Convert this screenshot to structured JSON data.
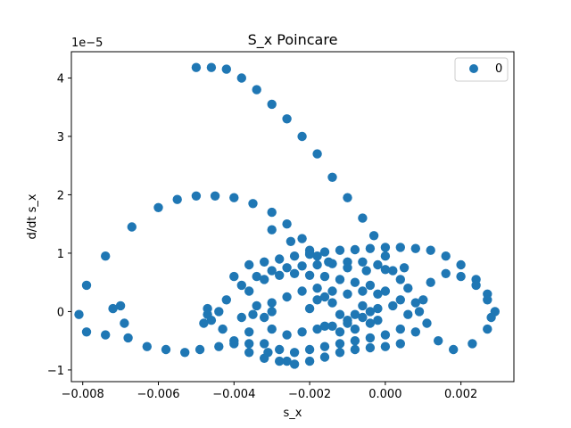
{
  "chart_data": {
    "type": "scatter",
    "title": "S_x Poincare",
    "xlabel": "s_x",
    "ylabel": "d/dt s_x",
    "y_offset_label": "1e−5",
    "xlim": [
      -0.0083,
      0.0034
    ],
    "ylim": [
      -1.2e-05,
      4.45e-05
    ],
    "grid": false,
    "legend_position": "top-right",
    "x_ticks": [
      -0.008,
      -0.006,
      -0.004,
      -0.002,
      0.0,
      0.002
    ],
    "x_tick_labels": [
      "−0.008",
      "−0.006",
      "−0.004",
      "−0.002",
      "0.000",
      "0.002"
    ],
    "y_ticks": [
      -1e-05,
      0,
      1e-05,
      2e-05,
      3e-05,
      4e-05
    ],
    "y_tick_labels": [
      "−1",
      "0",
      "1",
      "2",
      "3",
      "4"
    ],
    "series": [
      {
        "name": "0",
        "color": "#1f77b4",
        "x": [
          -0.005,
          -0.0046,
          -0.0042,
          -0.0038,
          -0.0034,
          -0.003,
          -0.0026,
          -0.0022,
          -0.0018,
          -0.0014,
          -0.001,
          -0.0006,
          -0.0003,
          0.0,
          0.0004,
          0.0008,
          -0.006,
          -0.0067,
          -0.0074,
          -0.0079,
          -0.0081,
          -0.0079,
          -0.0074,
          -0.0069,
          -0.007,
          -0.0072,
          -0.0068,
          -0.0063,
          -0.0058,
          -0.0053,
          -0.0049,
          -0.0044,
          -0.004,
          -0.0036,
          -0.0031,
          -0.0026,
          -0.0055,
          -0.005,
          -0.0045,
          -0.004,
          -0.0035,
          -0.003,
          -0.0026,
          -0.0022,
          -0.002,
          -0.0018,
          -0.0048,
          -0.0047,
          -0.0046,
          -0.0047,
          -0.004,
          -0.0036,
          -0.0032,
          -0.0028,
          -0.0024,
          -0.002,
          -0.0016,
          -0.0012,
          -0.0008,
          -0.0004,
          0.0,
          0.0004,
          0.0008,
          0.0012,
          0.0016,
          0.002,
          0.0024,
          0.0027,
          0.0029,
          0.0027,
          0.0023,
          0.0018,
          0.0014,
          0.0011,
          0.001,
          0.0012,
          0.0016,
          0.002,
          0.0024,
          0.0027,
          0.0028,
          -0.0042,
          -0.0038,
          -0.0034,
          -0.003,
          -0.0026,
          -0.0022,
          -0.0018,
          -0.0014,
          -0.001,
          -0.0006,
          -0.0002,
          0.0002,
          0.0006,
          0.0009,
          0.0008,
          0.0004,
          0.0,
          -0.0004,
          -0.0008,
          -0.0012,
          -0.0016,
          -0.002,
          -0.0024,
          -0.0028,
          -0.0032,
          -0.0036,
          -0.004,
          -0.0043,
          -0.0044,
          -0.0036,
          -0.0032,
          -0.0028,
          -0.0024,
          -0.002,
          -0.0016,
          -0.0012,
          -0.0008,
          -0.0004,
          0.0,
          0.0004,
          0.0006,
          0.0004,
          0.0,
          -0.0004,
          -0.0008,
          -0.0012,
          -0.0016,
          -0.002,
          -0.0024,
          -0.0028,
          -0.0032,
          -0.0036,
          -0.0038,
          -0.0034,
          -0.003,
          -0.0032,
          -0.0035,
          -0.003,
          -0.0026,
          -0.0022,
          -0.0018,
          -0.0014,
          -0.001,
          -0.0006,
          -0.0002,
          0.0002,
          -0.0002,
          -0.0006,
          -0.001,
          -0.0014,
          -0.0018,
          -0.0022,
          -0.0026,
          -0.003,
          -0.002,
          -0.0018,
          -0.0016,
          -0.0014,
          -0.0012,
          -0.001,
          -0.0008,
          -0.0006,
          -0.0004,
          -0.0002,
          -0.0016,
          -0.0012,
          -0.0008,
          -0.0004,
          -0.003,
          -0.0025,
          -0.002,
          -0.0015,
          -0.001,
          -0.0005,
          0.0,
          0.0005
        ],
        "y": [
          4.18e-05,
          4.18e-05,
          4.15e-05,
          4e-05,
          3.8e-05,
          3.55e-05,
          3.3e-05,
          3e-05,
          2.7e-05,
          2.3e-05,
          1.95e-05,
          1.6e-05,
          1.3e-05,
          9.5e-06,
          5.5e-06,
          1.5e-06,
          1.78e-05,
          1.45e-05,
          9.5e-06,
          4.5e-06,
          -5e-07,
          -3.5e-06,
          -4e-06,
          -2e-06,
          1e-06,
          5e-07,
          -4.5e-06,
          -6e-06,
          -6.5e-06,
          -7e-06,
          -6.5e-06,
          -6e-06,
          -5e-06,
          -5.5e-06,
          -7e-06,
          -8.5e-06,
          1.92e-05,
          1.98e-05,
          1.98e-05,
          1.95e-05,
          1.85e-05,
          1.7e-05,
          1.5e-05,
          1.25e-05,
          1.05e-05,
          9.5e-06,
          -2e-06,
          -5e-07,
          -1.5e-06,
          5e-07,
          6e-06,
          8e-06,
          8.5e-06,
          9e-06,
          9.5e-06,
          9.8e-06,
          1.02e-05,
          1.05e-05,
          1.06e-05,
          1.08e-05,
          1.1e-05,
          1.1e-05,
          1.08e-05,
          1.05e-05,
          9.5e-06,
          8e-06,
          5.5e-06,
          3e-06,
          0.0,
          -3e-06,
          -5.5e-06,
          -6.5e-06,
          -5e-06,
          -2e-06,
          2e-06,
          5e-06,
          6.5e-06,
          6e-06,
          4.5e-06,
          2e-06,
          -1e-06,
          2e-06,
          4.5e-06,
          6e-06,
          7e-06,
          7.5e-06,
          7.8e-06,
          8e-06,
          8.2e-06,
          8.5e-06,
          8.5e-06,
          8e-06,
          7e-06,
          4e-06,
          0.0,
          -3.5e-06,
          -5.5e-06,
          -6e-06,
          -6.2e-06,
          -6.5e-06,
          -7e-06,
          -7.8e-06,
          -8.5e-06,
          -9e-06,
          -8.5e-06,
          -8e-06,
          -7e-06,
          -5.5e-06,
          -3e-06,
          0.0,
          3.5e-06,
          5.5e-06,
          6.2e-06,
          6.5e-06,
          6.2e-06,
          6e-06,
          5.5e-06,
          5e-06,
          4.5e-06,
          3.5e-06,
          2e-06,
          -5e-07,
          -3e-06,
          -4e-06,
          -4.5e-06,
          -5e-06,
          -5.5e-06,
          -6e-06,
          -6.5e-06,
          -7e-06,
          -6.5e-06,
          -5.5e-06,
          -3.5e-06,
          -1e-06,
          1e-06,
          0.0,
          -1e-06,
          -5e-07,
          -3e-06,
          -4e-06,
          -3.5e-06,
          -3e-06,
          -2.5e-06,
          -2e-06,
          -1e-06,
          5e-07,
          1e-06,
          3e-06,
          3.5e-06,
          3e-06,
          3.5e-06,
          4e-06,
          3.5e-06,
          2.5e-06,
          1.5e-06,
          5e-07,
          2e-06,
          2.5e-06,
          1.5e-06,
          -5e-07,
          -1.5e-06,
          -5e-07,
          1e-06,
          0.0,
          -1.5e-06,
          -2.5e-06,
          -3.5e-06,
          -3e-06,
          -2e-06,
          1.4e-05,
          1.2e-05,
          1e-05,
          8.5e-06,
          7.5e-06,
          7e-06,
          7.2e-06,
          7.5e-06
        ]
      }
    ]
  }
}
